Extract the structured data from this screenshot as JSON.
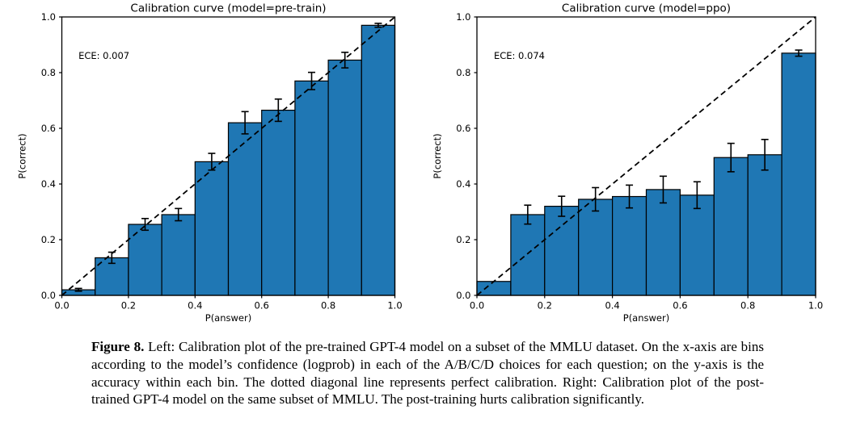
{
  "figure": {
    "caption_label": "Figure 8.",
    "caption_text": " Left: Calibration plot of the pre-trained GPT-4 model on a subset of the MMLU dataset. On the x-axis are bins according to the model’s confidence (logprob) in each of the A/B/C/D choices for each question; on the y-axis is the accuracy within each bin. The dotted diagonal line represents perfect calibration. Right: Calibration plot of the post-trained GPT-4 model on the same subset of MMLU. The post-training hurts calibration significantly."
  },
  "colors": {
    "bar_fill": "#1f77b4",
    "bar_edge": "#000000",
    "diagonal_line": "#000000",
    "axis": "#000000",
    "text": "#000000"
  },
  "chart_data": [
    {
      "type": "bar",
      "title": "Calibration curve (model=pre-train)",
      "annotation": "ECE: 0.007",
      "xlabel": "P(answer)",
      "ylabel": "P(correct)",
      "xlim": [
        0.0,
        1.0
      ],
      "ylim": [
        0.0,
        1.0
      ],
      "xticks": [
        0.0,
        0.2,
        0.4,
        0.6,
        0.8,
        1.0
      ],
      "yticks": [
        0.0,
        0.2,
        0.4,
        0.6,
        0.8,
        1.0
      ],
      "bin_edges": [
        0.0,
        0.1,
        0.2,
        0.3,
        0.4,
        0.5,
        0.6,
        0.7,
        0.8,
        0.9,
        1.0
      ],
      "values": [
        0.02,
        0.135,
        0.255,
        0.29,
        0.48,
        0.62,
        0.665,
        0.77,
        0.845,
        0.97
      ],
      "errors": [
        0.005,
        0.02,
        0.021,
        0.022,
        0.03,
        0.04,
        0.04,
        0.031,
        0.028,
        0.007
      ],
      "diagonal_reference": true,
      "grid": false,
      "legend": null
    },
    {
      "type": "bar",
      "title": "Calibration curve (model=ppo)",
      "annotation": "ECE: 0.074",
      "xlabel": "P(answer)",
      "ylabel": "P(correct)",
      "xlim": [
        0.0,
        1.0
      ],
      "ylim": [
        0.0,
        1.0
      ],
      "xticks": [
        0.0,
        0.2,
        0.4,
        0.6,
        0.8,
        1.0
      ],
      "yticks": [
        0.0,
        0.2,
        0.4,
        0.6,
        0.8,
        1.0
      ],
      "bin_edges": [
        0.0,
        0.1,
        0.2,
        0.3,
        0.4,
        0.5,
        0.6,
        0.7,
        0.8,
        0.9,
        1.0
      ],
      "values": [
        0.05,
        0.29,
        0.32,
        0.345,
        0.355,
        0.38,
        0.36,
        0.495,
        0.505,
        0.87
      ],
      "errors": [
        0,
        0.034,
        0.036,
        0.042,
        0.041,
        0.048,
        0.048,
        0.051,
        0.055,
        0.011
      ],
      "diagonal_reference": true,
      "grid": false,
      "legend": null
    }
  ]
}
